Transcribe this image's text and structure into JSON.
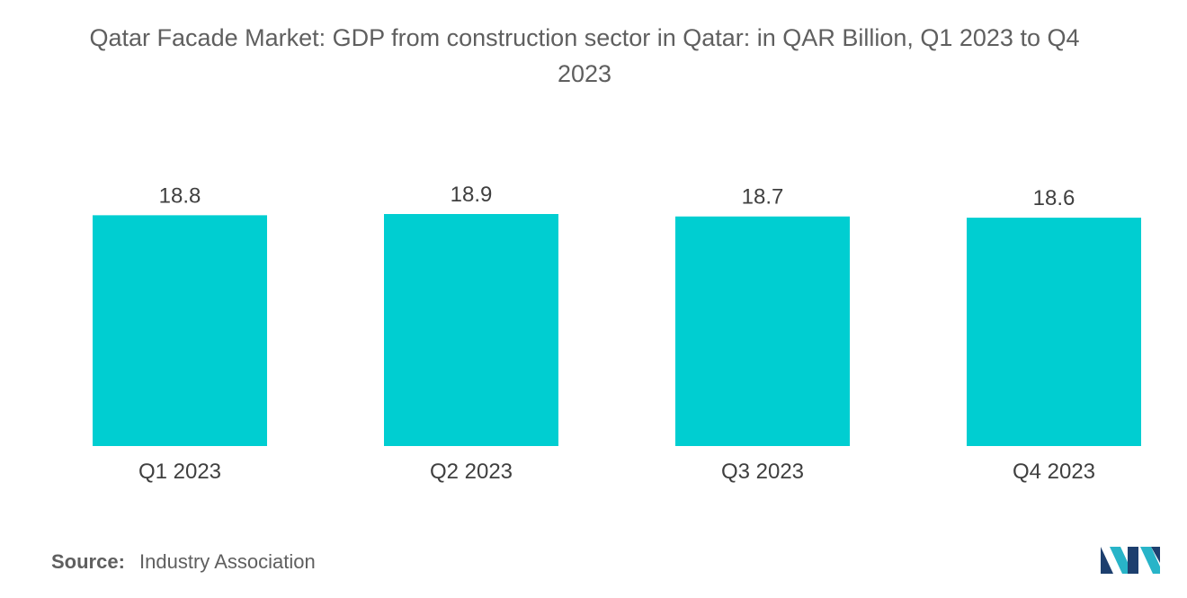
{
  "title_lines": [
    "Qatar Facade Market: GDP from construction sector in Qatar: in QAR Billion, Q1 2023 to Q4",
    "2023"
  ],
  "chart_data": {
    "type": "bar",
    "title": "Qatar Facade Market: GDP from construction sector in Qatar: in QAR Billion, Q1 2023 to Q4 2023",
    "categories": [
      "Q1 2023",
      "Q2 2023",
      "Q3 2023",
      "Q4 2023"
    ],
    "values": [
      18.8,
      18.9,
      18.7,
      18.6
    ],
    "value_labels": [
      "18.8",
      "18.9",
      "18.7",
      "18.6"
    ],
    "xlabel": "",
    "ylabel": "",
    "ylim": [
      0,
      18.9
    ],
    "grid": false,
    "bar_color": "#00CED1"
  },
  "footer": {
    "source_label": "Source:",
    "source_text": "Industry Association"
  },
  "logo": {
    "icon": "mordor-intelligence-logo-icon",
    "colors": [
      "#1d3f6e",
      "#28b4c8"
    ]
  }
}
